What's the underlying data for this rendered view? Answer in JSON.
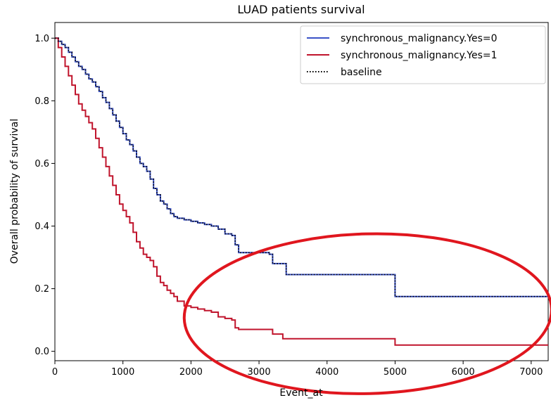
{
  "chart_data": {
    "type": "line",
    "step": true,
    "title": "LUAD patients survival",
    "xlabel": "Event_at",
    "ylabel": "Overall probability of survival",
    "xlim": [
      0,
      7250
    ],
    "ylim": [
      -0.03,
      1.05
    ],
    "xticks": [
      0,
      1000,
      2000,
      3000,
      4000,
      5000,
      6000,
      7000
    ],
    "yticks": [
      0.0,
      0.2,
      0.4,
      0.6,
      0.8,
      1.0
    ],
    "xtick_labels": [
      "0",
      "1000",
      "2000",
      "3000",
      "4000",
      "5000",
      "6000",
      "7000"
    ],
    "ytick_labels": [
      "0.0",
      "0.2",
      "0.4",
      "0.6",
      "0.8",
      "1.0"
    ],
    "legend_position": "top-right",
    "grid": false,
    "series": [
      {
        "name": "synchronous_malignancy.Yes=0",
        "color": "#3a52c7",
        "style": "solid",
        "x": [
          0,
          50,
          100,
          150,
          200,
          250,
          300,
          350,
          400,
          450,
          500,
          550,
          600,
          650,
          700,
          750,
          800,
          850,
          900,
          950,
          1000,
          1050,
          1100,
          1150,
          1200,
          1250,
          1300,
          1350,
          1400,
          1450,
          1500,
          1550,
          1600,
          1650,
          1700,
          1750,
          1800,
          1850,
          1900,
          2000,
          2100,
          2200,
          2300,
          2400,
          2500,
          2600,
          2650,
          2700,
          3000,
          3150,
          3200,
          3350,
          3400,
          4950,
          5000,
          7250
        ],
        "y": [
          1.0,
          0.99,
          0.98,
          0.97,
          0.955,
          0.94,
          0.925,
          0.91,
          0.9,
          0.885,
          0.87,
          0.86,
          0.845,
          0.83,
          0.81,
          0.795,
          0.775,
          0.755,
          0.735,
          0.715,
          0.695,
          0.675,
          0.66,
          0.64,
          0.62,
          0.6,
          0.59,
          0.575,
          0.55,
          0.52,
          0.5,
          0.48,
          0.47,
          0.455,
          0.44,
          0.43,
          0.425,
          0.425,
          0.42,
          0.415,
          0.41,
          0.405,
          0.4,
          0.39,
          0.375,
          0.37,
          0.34,
          0.315,
          0.315,
          0.31,
          0.28,
          0.28,
          0.245,
          0.245,
          0.175,
          0.175
        ]
      },
      {
        "name": "synchronous_malignancy.Yes=1",
        "color": "#c0142c",
        "style": "solid",
        "x": [
          0,
          50,
          100,
          150,
          200,
          250,
          300,
          350,
          400,
          450,
          500,
          550,
          600,
          650,
          700,
          750,
          800,
          850,
          900,
          950,
          1000,
          1050,
          1100,
          1150,
          1200,
          1250,
          1300,
          1350,
          1400,
          1450,
          1500,
          1550,
          1600,
          1650,
          1700,
          1750,
          1800,
          1900,
          2000,
          2100,
          2200,
          2300,
          2400,
          2500,
          2600,
          2650,
          2700,
          3000,
          3200,
          3350,
          4950,
          5000,
          7250
        ],
        "y": [
          1.0,
          0.97,
          0.94,
          0.91,
          0.88,
          0.85,
          0.82,
          0.79,
          0.77,
          0.75,
          0.73,
          0.71,
          0.68,
          0.65,
          0.62,
          0.59,
          0.56,
          0.53,
          0.5,
          0.47,
          0.45,
          0.43,
          0.41,
          0.38,
          0.35,
          0.33,
          0.31,
          0.3,
          0.29,
          0.27,
          0.24,
          0.22,
          0.21,
          0.195,
          0.185,
          0.175,
          0.16,
          0.145,
          0.14,
          0.135,
          0.13,
          0.125,
          0.11,
          0.105,
          0.1,
          0.075,
          0.07,
          0.07,
          0.055,
          0.04,
          0.04,
          0.02,
          0.02
        ]
      },
      {
        "name": "baseline",
        "color": "#000000",
        "style": "dotted",
        "x": [
          0,
          50,
          100,
          150,
          200,
          250,
          300,
          350,
          400,
          450,
          500,
          550,
          600,
          650,
          700,
          750,
          800,
          850,
          900,
          950,
          1000,
          1050,
          1100,
          1150,
          1200,
          1250,
          1300,
          1350,
          1400,
          1450,
          1500,
          1550,
          1600,
          1650,
          1700,
          1750,
          1800,
          1850,
          1900,
          2000,
          2100,
          2200,
          2300,
          2400,
          2500,
          2600,
          2650,
          2700,
          3000,
          3150,
          3200,
          3350,
          3400,
          4950,
          5000,
          7250
        ],
        "y": [
          1.0,
          0.99,
          0.98,
          0.97,
          0.955,
          0.94,
          0.925,
          0.91,
          0.9,
          0.885,
          0.87,
          0.86,
          0.845,
          0.83,
          0.81,
          0.795,
          0.775,
          0.755,
          0.735,
          0.715,
          0.695,
          0.675,
          0.66,
          0.64,
          0.62,
          0.6,
          0.59,
          0.575,
          0.55,
          0.52,
          0.5,
          0.48,
          0.47,
          0.455,
          0.44,
          0.43,
          0.425,
          0.425,
          0.42,
          0.415,
          0.41,
          0.405,
          0.4,
          0.39,
          0.375,
          0.37,
          0.34,
          0.315,
          0.315,
          0.31,
          0.28,
          0.28,
          0.245,
          0.245,
          0.175,
          0.175
        ]
      }
    ],
    "annotation": {
      "shape": "ellipse",
      "color": "#e0161e",
      "note": "red hand-drawn ellipse highlighting the tail of both curves",
      "center": [
        4600,
        0.12
      ],
      "radius": [
        2700,
        0.255
      ]
    }
  }
}
